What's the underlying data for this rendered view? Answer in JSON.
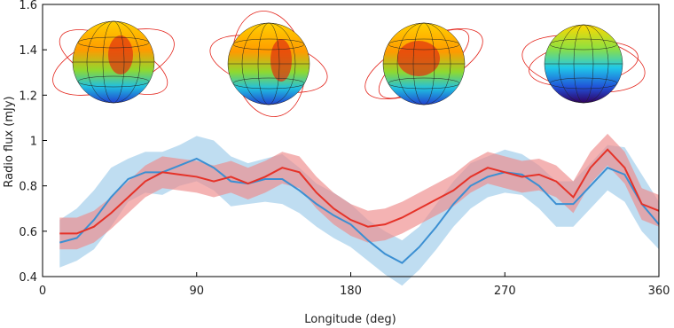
{
  "chart_data": {
    "type": "line",
    "x_label": "Longitude (deg)",
    "y_label": "Radio flux (mJy)",
    "xlim": [
      0,
      360
    ],
    "xticks": [
      0,
      90,
      180,
      270,
      360
    ],
    "ylim": [
      0.4,
      1.6
    ],
    "yticks": [
      0.4,
      0.6,
      0.8,
      1.0,
      1.2,
      1.4,
      1.6
    ],
    "x": [
      10,
      20,
      30,
      40,
      50,
      60,
      70,
      80,
      90,
      100,
      110,
      120,
      130,
      140,
      150,
      160,
      170,
      180,
      190,
      200,
      210,
      220,
      230,
      240,
      250,
      260,
      270,
      280,
      290,
      300,
      310,
      320,
      330,
      340,
      350,
      360
    ],
    "series": [
      {
        "color": "#3b8fd2",
        "band_color": "#9ccbea",
        "values": [
          0.55,
          0.57,
          0.65,
          0.75,
          0.83,
          0.86,
          0.86,
          0.89,
          0.92,
          0.88,
          0.82,
          0.81,
          0.83,
          0.83,
          0.78,
          0.72,
          0.67,
          0.63,
          0.56,
          0.5,
          0.46,
          0.53,
          0.62,
          0.72,
          0.8,
          0.84,
          0.86,
          0.85,
          0.8,
          0.72,
          0.72,
          0.8,
          0.88,
          0.85,
          0.72,
          0.63
        ],
        "upper": [
          0.65,
          0.7,
          0.78,
          0.88,
          0.92,
          0.95,
          0.95,
          0.98,
          1.02,
          1.0,
          0.93,
          0.9,
          0.92,
          0.94,
          0.88,
          0.81,
          0.77,
          0.72,
          0.65,
          0.6,
          0.56,
          0.62,
          0.72,
          0.82,
          0.9,
          0.93,
          0.96,
          0.94,
          0.89,
          0.82,
          0.82,
          0.9,
          0.98,
          0.97,
          0.85,
          0.73
        ],
        "lower": [
          0.44,
          0.47,
          0.52,
          0.62,
          0.73,
          0.77,
          0.76,
          0.8,
          0.82,
          0.78,
          0.71,
          0.72,
          0.73,
          0.72,
          0.68,
          0.62,
          0.57,
          0.53,
          0.47,
          0.41,
          0.36,
          0.43,
          0.52,
          0.62,
          0.7,
          0.75,
          0.77,
          0.76,
          0.7,
          0.62,
          0.62,
          0.7,
          0.78,
          0.73,
          0.6,
          0.52
        ]
      },
      {
        "color": "#e53228",
        "band_color": "#ee8b8b",
        "values": [
          0.59,
          0.59,
          0.62,
          0.68,
          0.75,
          0.82,
          0.86,
          0.85,
          0.84,
          0.82,
          0.84,
          0.81,
          0.84,
          0.88,
          0.86,
          0.77,
          0.7,
          0.65,
          0.62,
          0.63,
          0.66,
          0.7,
          0.74,
          0.78,
          0.84,
          0.88,
          0.86,
          0.84,
          0.85,
          0.82,
          0.75,
          0.88,
          0.96,
          0.88,
          0.72,
          0.69
        ],
        "upper": [
          0.66,
          0.66,
          0.69,
          0.75,
          0.82,
          0.89,
          0.93,
          0.92,
          0.91,
          0.89,
          0.91,
          0.88,
          0.91,
          0.95,
          0.93,
          0.84,
          0.77,
          0.72,
          0.69,
          0.7,
          0.73,
          0.77,
          0.81,
          0.85,
          0.91,
          0.95,
          0.93,
          0.91,
          0.92,
          0.89,
          0.82,
          0.95,
          1.03,
          0.95,
          0.79,
          0.76
        ],
        "lower": [
          0.52,
          0.52,
          0.55,
          0.61,
          0.68,
          0.75,
          0.79,
          0.78,
          0.77,
          0.75,
          0.77,
          0.74,
          0.77,
          0.81,
          0.79,
          0.7,
          0.63,
          0.58,
          0.55,
          0.56,
          0.59,
          0.63,
          0.67,
          0.71,
          0.77,
          0.81,
          0.79,
          0.77,
          0.78,
          0.75,
          0.68,
          0.81,
          0.89,
          0.81,
          0.65,
          0.62
        ]
      }
    ]
  }
}
